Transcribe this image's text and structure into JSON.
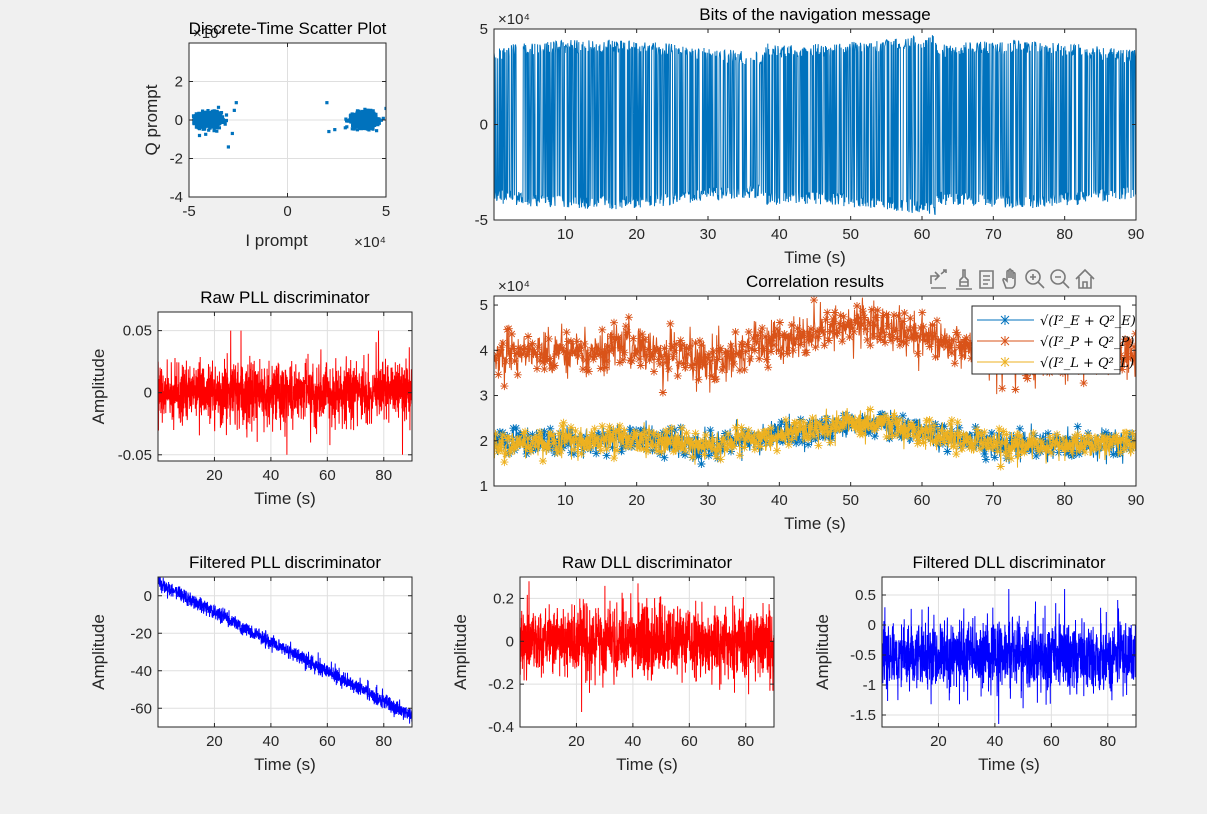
{
  "figure": {
    "background": "#f0f0f0"
  },
  "toolbar": {
    "icons": [
      "export-icon",
      "brush-icon",
      "datatip-icon",
      "legend-toggle-icon",
      "pan-icon",
      "zoom-in-icon",
      "zoom-out-icon",
      "home-icon"
    ]
  },
  "chart_data": [
    {
      "id": "scatter",
      "type": "scatter",
      "title": "Discrete-Time Scatter Plot",
      "xlabel": "I prompt",
      "ylabel": "Q prompt",
      "x_exponent": "×10⁴",
      "y_exponent": "×10⁴",
      "xlim": [
        -5,
        5
      ],
      "ylim": [
        -4,
        4
      ],
      "xticks": [
        -5,
        0,
        5
      ],
      "yticks": [
        -4,
        -2,
        0,
        2
      ],
      "clusters": [
        {
          "center": [
            -4.0,
            0.0
          ],
          "spread": [
            0.6,
            0.35
          ]
        },
        {
          "center": [
            3.9,
            0.0
          ],
          "spread": [
            0.6,
            0.35
          ]
        }
      ],
      "color": "#0072bd",
      "grid": true
    },
    {
      "id": "bits",
      "type": "line",
      "title": "Bits of the navigation message",
      "xlabel": "Time (s)",
      "ylabel": "",
      "y_exponent": "×10⁴",
      "xlim": [
        0,
        90
      ],
      "ylim": [
        -5,
        5
      ],
      "xticks": [
        10,
        20,
        30,
        40,
        50,
        60,
        70,
        80,
        90
      ],
      "yticks": [
        -5,
        0,
        5
      ],
      "amplitude_range": [
        3.5,
        4.9
      ],
      "color": "#0072bd",
      "grid": false
    },
    {
      "id": "raw_pll",
      "type": "line",
      "title": "Raw PLL discriminator",
      "xlabel": "Time (s)",
      "ylabel": "Amplitude",
      "xlim": [
        0,
        90
      ],
      "ylim": [
        -0.055,
        0.065
      ],
      "xticks": [
        20,
        40,
        60,
        80
      ],
      "yticks": [
        -0.05,
        0,
        0.05
      ],
      "ytick_labels": [
        "-0.05",
        "0",
        "0.05"
      ],
      "noise_std": 0.012,
      "color": "#ff0000",
      "grid": true
    },
    {
      "id": "correlation",
      "type": "line",
      "title": "Correlation results",
      "xlabel": "Time (s)",
      "ylabel": "",
      "y_exponent": "×10⁴",
      "xlim": [
        0,
        90
      ],
      "ylim": [
        1,
        5.2
      ],
      "xticks": [
        10,
        20,
        30,
        40,
        50,
        60,
        70,
        80,
        90
      ],
      "yticks": [
        1,
        2,
        3,
        4,
        5
      ],
      "legend_position": "top-right",
      "series": [
        {
          "name": "√(I²_E + Q²_E)",
          "color": "#0072bd",
          "mean": 1.95,
          "spread": 0.28
        },
        {
          "name": "√(I²_P + Q²_P)",
          "color": "#d95319",
          "mean": 3.9,
          "spread": 0.45
        },
        {
          "name": "√(I²_L + Q²_L)",
          "color": "#edb120",
          "mean": 1.95,
          "spread": 0.28
        }
      ],
      "trend": [
        [
          0,
          0
        ],
        [
          20,
          0.1
        ],
        [
          30,
          -0.1
        ],
        [
          40,
          0.2
        ],
        [
          52,
          0.45
        ],
        [
          62,
          0.2
        ],
        [
          72,
          -0.05
        ],
        [
          90,
          0.0
        ]
      ],
      "grid": false
    },
    {
      "id": "filtered_pll",
      "type": "line",
      "title": "Filtered PLL discriminator",
      "xlabel": "Time (s)",
      "ylabel": "Amplitude",
      "xlim": [
        0,
        90
      ],
      "ylim": [
        -70,
        10
      ],
      "xticks": [
        20,
        40,
        60,
        80
      ],
      "yticks": [
        -60,
        -40,
        -20,
        0
      ],
      "trend_line": [
        [
          0,
          7
        ],
        [
          90,
          -64
        ]
      ],
      "noise_std": 2.0,
      "color": "#0000ff",
      "grid": true
    },
    {
      "id": "raw_dll",
      "type": "line",
      "title": "Raw DLL discriminator",
      "xlabel": "Time (s)",
      "ylabel": "Amplitude",
      "xlim": [
        0,
        90
      ],
      "ylim": [
        -0.4,
        0.3
      ],
      "xticks": [
        20,
        40,
        60,
        80
      ],
      "yticks": [
        -0.4,
        -0.2,
        0,
        0.2
      ],
      "ytick_labels": [
        "-0.4",
        "-0.2",
        "0",
        "0.2"
      ],
      "noise_std": 0.08,
      "color": "#ff0000",
      "grid": true
    },
    {
      "id": "filtered_dll",
      "type": "line",
      "title": "Filtered DLL discriminator",
      "xlabel": "Time (s)",
      "ylabel": "Amplitude",
      "xlim": [
        0,
        90
      ],
      "ylim": [
        -1.7,
        0.8
      ],
      "xticks": [
        20,
        40,
        60,
        80
      ],
      "yticks": [
        -1.5,
        -1,
        -0.5,
        0,
        0.5
      ],
      "ytick_labels": [
        "-1.5",
        "-1",
        "-0.5",
        "0",
        "0.5"
      ],
      "center": -0.5,
      "noise_std": 0.28,
      "color": "#0000ff",
      "grid": true
    }
  ]
}
